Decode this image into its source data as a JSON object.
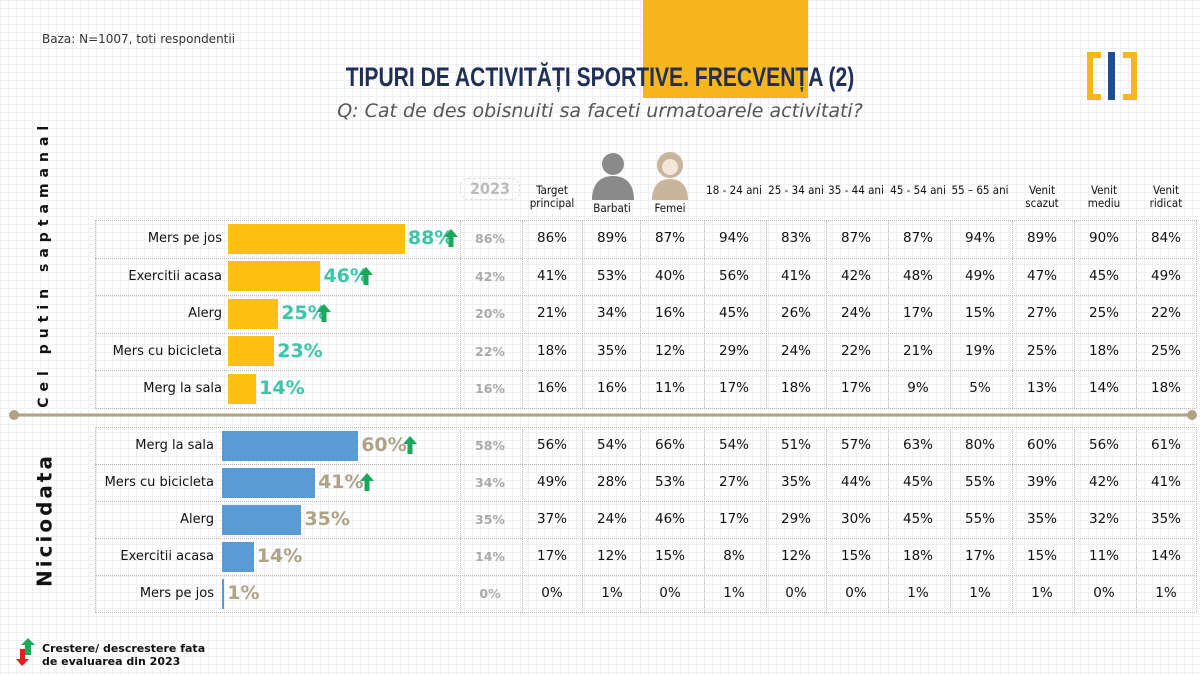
{
  "base_note": "Baza: N=1007, toti respondentii",
  "title_part1": "TIPURI DE ACTIVITĂȚI SPORTIVE. ",
  "title_part2": "FRECVENȚA (2)",
  "subtitle": "Q: Cat de des obisnuiti sa faceti urmatoarele activitati?",
  "colors": {
    "yellow": "#fcbf12",
    "blue": "#5b9bd5",
    "teal": "#3cc5a6",
    "tan": "#b0a285",
    "navy": "#1f2f55",
    "green_arrow": "#1aa85a",
    "red_arrow": "#e0201b"
  },
  "columns": [
    "2023",
    "Target principal",
    "Barbati",
    "Femei",
    "18 - 24 ani",
    "25 - 34 ani",
    "35 - 44 ani",
    "45 - 54 ani",
    "55 – 65 ani",
    "Venit scazut",
    "Venit mediu",
    "Venit ridicat"
  ],
  "icons": {
    "man": "man-silhouette-icon",
    "woman": "woman-silhouette-icon"
  },
  "sections": [
    {
      "label": "Cel putin saptamanal",
      "bar_color": "#fcbf12",
      "value_color": "#3cc5a6",
      "rows": [
        {
          "activity": "Mers pe jos",
          "value": 88,
          "value_label": "88%",
          "trend": "up",
          "cells": [
            "86%",
            "86%",
            "89%",
            "87%",
            "94%",
            "83%",
            "87%",
            "87%",
            "94%",
            "89%",
            "90%",
            "84%"
          ]
        },
        {
          "activity": "Exercitii acasa",
          "value": 46,
          "value_label": "46%",
          "trend": "up",
          "cells": [
            "42%",
            "41%",
            "53%",
            "40%",
            "56%",
            "41%",
            "42%",
            "48%",
            "49%",
            "47%",
            "45%",
            "49%"
          ]
        },
        {
          "activity": "Alerg",
          "value": 25,
          "value_label": "25%",
          "trend": "up",
          "cells": [
            "20%",
            "21%",
            "34%",
            "16%",
            "45%",
            "26%",
            "24%",
            "17%",
            "15%",
            "27%",
            "25%",
            "22%"
          ]
        },
        {
          "activity": "Mers cu bicicleta",
          "value": 23,
          "value_label": "23%",
          "trend": "none",
          "cells": [
            "22%",
            "18%",
            "35%",
            "12%",
            "29%",
            "24%",
            "22%",
            "21%",
            "19%",
            "25%",
            "18%",
            "25%"
          ]
        },
        {
          "activity": "Merg la sala",
          "value": 14,
          "value_label": "14%",
          "trend": "none",
          "cells": [
            "16%",
            "16%",
            "16%",
            "11%",
            "17%",
            "18%",
            "17%",
            "9%",
            "5%",
            "13%",
            "14%",
            "18%"
          ]
        }
      ]
    },
    {
      "label": "Niciodata",
      "bar_color": "#5b9bd5",
      "value_color": "#b0a285",
      "rows": [
        {
          "activity": "Merg la sala",
          "value": 60,
          "value_label": "60%",
          "trend": "up",
          "cells": [
            "58%",
            "56%",
            "54%",
            "66%",
            "54%",
            "51%",
            "57%",
            "63%",
            "80%",
            "60%",
            "56%",
            "61%"
          ]
        },
        {
          "activity": "Mers cu bicicleta",
          "value": 41,
          "value_label": "41%",
          "trend": "up",
          "cells": [
            "34%",
            "49%",
            "28%",
            "53%",
            "27%",
            "35%",
            "44%",
            "45%",
            "55%",
            "39%",
            "42%",
            "41%"
          ]
        },
        {
          "activity": "Alerg",
          "value": 35,
          "value_label": "35%",
          "trend": "none",
          "cells": [
            "35%",
            "37%",
            "24%",
            "46%",
            "17%",
            "29%",
            "30%",
            "45%",
            "55%",
            "35%",
            "32%",
            "35%"
          ]
        },
        {
          "activity": "Exercitii acasa",
          "value": 14,
          "value_label": "14%",
          "trend": "none",
          "cells": [
            "14%",
            "17%",
            "12%",
            "15%",
            "8%",
            "12%",
            "15%",
            "18%",
            "17%",
            "15%",
            "11%",
            "14%"
          ]
        },
        {
          "activity": "Mers pe jos",
          "value": 1,
          "value_label": "1%",
          "trend": "none",
          "cells": [
            "0%",
            "0%",
            "1%",
            "0%",
            "1%",
            "0%",
            "0%",
            "1%",
            "1%",
            "1%",
            "0%",
            "1%"
          ]
        }
      ]
    }
  ],
  "legend": {
    "line1": "Crestere/ descrestere fata",
    "line2": "de evaluarea din 2023"
  }
}
